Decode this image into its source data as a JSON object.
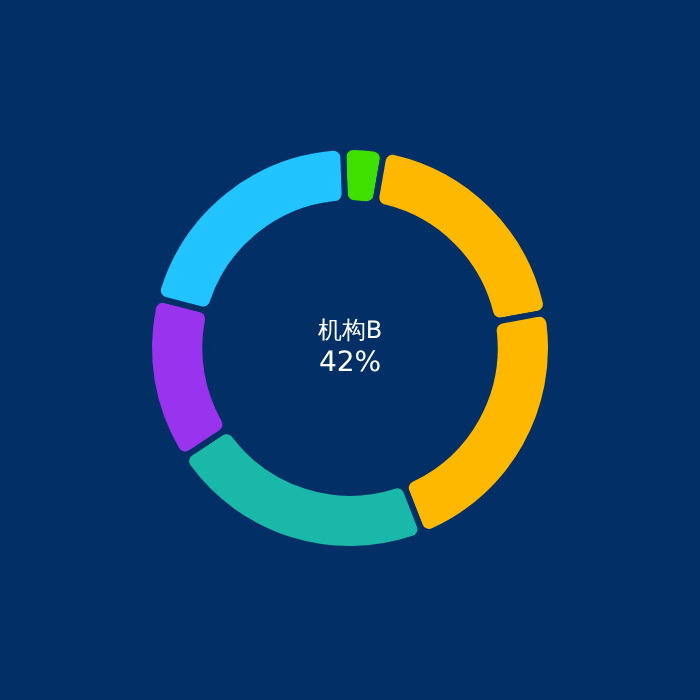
{
  "chart_data": {
    "type": "donut",
    "categories": [
      null,
      null,
      null,
      null,
      null,
      null
    ],
    "values": [
      3.3,
      19.4,
      21.9,
      21.7,
      13.3,
      20.4
    ],
    "colors": [
      "#3ee000",
      "#ffb800",
      "#ffb800",
      "#1ab8a8",
      "#9933ee",
      "#22c4ff"
    ],
    "annotations": [
      "机构B",
      "42%"
    ],
    "legend": false
  }
}
